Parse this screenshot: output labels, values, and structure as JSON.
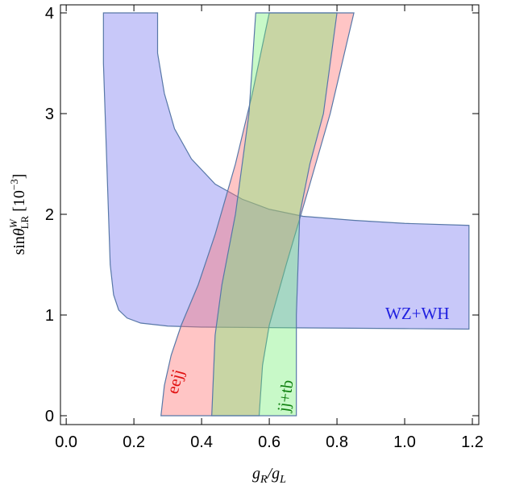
{
  "chart_data": {
    "type": "area",
    "x_label": [
      "g",
      "R",
      "/g",
      "L"
    ],
    "y_label": [
      "sin",
      "θ",
      "W",
      "LR",
      " [10",
      "−3",
      "]"
    ],
    "xlim": [
      -0.017,
      1.219
    ],
    "ylim": [
      -0.088,
      4.08
    ],
    "xticks": [
      {
        "value": 0,
        "label": "0.0"
      },
      {
        "value": 0.2,
        "label": "0.2"
      },
      {
        "value": 0.4,
        "label": "0.4"
      },
      {
        "value": 0.6,
        "label": "0.6"
      },
      {
        "value": 0.8,
        "label": "0.8"
      },
      {
        "value": 1,
        "label": "1.0"
      },
      {
        "value": 1.2,
        "label": "1.2"
      }
    ],
    "yticks": [
      0,
      1,
      2,
      3,
      4
    ],
    "series": [
      {
        "name": "WZ+WH",
        "color": "#3a3ae0",
        "fill": "rgba(110,110,240,0.38)",
        "x": [
          0.27,
          0.27,
          0.29,
          0.32,
          0.37,
          0.44,
          0.52,
          0.6,
          0.7,
          0.85,
          1.0,
          1.19,
          1.19,
          1.0,
          0.8,
          0.6,
          0.4,
          0.3,
          0.22,
          0.18,
          0.155,
          0.14,
          0.13,
          0.125,
          0.12,
          0.115,
          0.11,
          0.11
        ],
        "values": [
          4,
          3.6,
          3.2,
          2.85,
          2.55,
          2.3,
          2.15,
          2.05,
          1.98,
          1.94,
          1.91,
          1.89,
          0.86,
          0.865,
          0.87,
          0.875,
          0.88,
          0.89,
          0.92,
          0.97,
          1.05,
          1.2,
          1.5,
          2,
          2.5,
          3,
          3.5,
          4
        ]
      },
      {
        "name": "eejj",
        "color": "#e01010",
        "fill": "rgba(255,110,110,0.4)",
        "x": [
          0.28,
          0.29,
          0.31,
          0.34,
          0.39,
          0.44,
          0.5,
          0.55,
          0.6,
          0.85,
          0.78,
          0.72,
          0.65,
          0.6,
          0.58,
          0.57
        ],
        "values": [
          0,
          0.3,
          0.6,
          0.9,
          1.3,
          1.8,
          2.5,
          3.2,
          4,
          4,
          3,
          2.3,
          1.5,
          0.9,
          0.5,
          0
        ]
      },
      {
        "name": "jj+tb",
        "color": "#108010",
        "fill": "rgba(110,240,110,0.38)",
        "x": [
          0.43,
          0.44,
          0.46,
          0.5,
          0.54,
          0.56,
          0.8,
          0.76,
          0.72,
          0.69,
          0.68,
          0.68
        ],
        "values": [
          0,
          0.8,
          1.3,
          2,
          3,
          4,
          4,
          3,
          2.5,
          2,
          1,
          0
        ]
      }
    ]
  }
}
